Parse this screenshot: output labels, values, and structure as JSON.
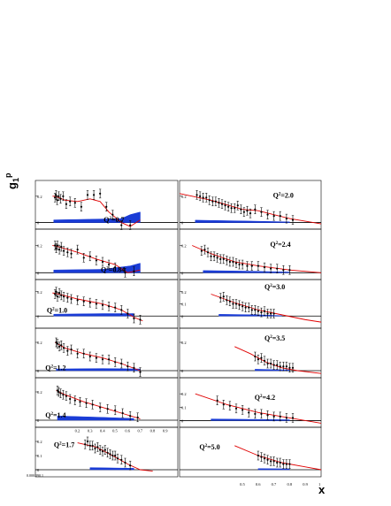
{
  "figure": {
    "ylabel": "g",
    "ylabel_sub": "1",
    "ylabel_sup": "p",
    "xlabel": "x"
  },
  "chart_data": [
    {
      "type": "scatter",
      "panel": "Q2=0.7",
      "label_q": "Q",
      "label_exp": "2",
      "label_val": "=0.7",
      "xlim": [
        8e-05,
        1
      ],
      "ylim": [
        -0.05,
        0.32
      ],
      "yticks": [
        "0.2",
        "0"
      ],
      "x": [
        0.02,
        0.028,
        0.038,
        0.05,
        0.065,
        0.085,
        0.11,
        0.14,
        0.18,
        0.23,
        0.28,
        0.33,
        0.38,
        0.43,
        0.48,
        0.55,
        0.62
      ],
      "y": [
        0.19,
        0.21,
        0.17,
        0.2,
        0.18,
        0.2,
        0.14,
        0.16,
        0.15,
        0.12,
        0.21,
        0.21,
        0.22,
        0.12,
        0.06,
        -0.02,
        -0.02
      ],
      "fit": [
        [
          0.0002,
          0.2
        ],
        [
          0.01,
          0.2
        ],
        [
          0.05,
          0.19
        ],
        [
          0.1,
          0.17
        ],
        [
          0.2,
          0.16
        ],
        [
          0.3,
          0.18
        ],
        [
          0.38,
          0.16
        ],
        [
          0.45,
          0.08
        ],
        [
          0.55,
          0.0
        ],
        [
          0.62,
          -0.03
        ],
        [
          0.7,
          0.02
        ]
      ],
      "band": [
        [
          0.01,
          0.02
        ],
        [
          0.3,
          0.025
        ],
        [
          0.55,
          0.03
        ],
        [
          0.62,
          0.06
        ],
        [
          0.7,
          0.08
        ]
      ]
    },
    {
      "type": "scatter",
      "panel": "Q2=2.0",
      "label_q": "Q",
      "label_exp": "2",
      "label_val": "=2.0",
      "xlim": [
        0.1,
        1
      ],
      "ylim": [
        -0.05,
        0.32
      ],
      "yticks": [
        "0.2",
        "0"
      ],
      "x": [
        0.21,
        0.23,
        0.25,
        0.27,
        0.29,
        0.31,
        0.33,
        0.35,
        0.37,
        0.39,
        0.41,
        0.43,
        0.45,
        0.47,
        0.49,
        0.51,
        0.53,
        0.55,
        0.58,
        0.62,
        0.66,
        0.7,
        0.74,
        0.78,
        0.82
      ],
      "y": [
        0.21,
        0.2,
        0.19,
        0.19,
        0.17,
        0.16,
        0.16,
        0.15,
        0.14,
        0.13,
        0.12,
        0.11,
        0.11,
        0.13,
        0.1,
        0.08,
        0.09,
        0.07,
        0.1,
        0.08,
        0.06,
        0.05,
        0.05,
        0.03,
        0.02
      ],
      "fit": [
        [
          0.1,
          0.22
        ],
        [
          0.3,
          0.17
        ],
        [
          0.5,
          0.1
        ],
        [
          0.6,
          0.09
        ],
        [
          0.7,
          0.06
        ],
        [
          0.8,
          0.03
        ],
        [
          1,
          -0.01
        ]
      ],
      "band": [
        [
          0.2,
          0.018
        ],
        [
          0.5,
          0.012
        ],
        [
          0.8,
          0.005
        ]
      ]
    },
    {
      "type": "scatter",
      "panel": "Q2=0.84",
      "label_q": "Q",
      "label_exp": "2",
      "label_val": "=0.84",
      "xlim": [
        8e-05,
        1
      ],
      "ylim": [
        -0.05,
        0.32
      ],
      "yticks": [
        "0.2",
        "0"
      ],
      "x": [
        0.02,
        0.03,
        0.04,
        0.055,
        0.07,
        0.09,
        0.12,
        0.15,
        0.2,
        0.25,
        0.3,
        0.35,
        0.4,
        0.45,
        0.5,
        0.58,
        0.65
      ],
      "y": [
        0.2,
        0.18,
        0.2,
        0.17,
        0.19,
        0.16,
        0.15,
        0.14,
        0.17,
        0.11,
        0.12,
        0.09,
        0.08,
        0.06,
        0.04,
        0.0,
        0.01
      ],
      "fit": [
        [
          0.0002,
          0.2
        ],
        [
          0.05,
          0.19
        ],
        [
          0.2,
          0.15
        ],
        [
          0.35,
          0.1
        ],
        [
          0.5,
          0.06
        ],
        [
          0.6,
          0.0
        ],
        [
          0.7,
          0.02
        ]
      ],
      "band": [
        [
          0.01,
          0.02
        ],
        [
          0.4,
          0.025
        ],
        [
          0.62,
          0.05
        ],
        [
          0.7,
          0.07
        ]
      ]
    },
    {
      "type": "scatter",
      "panel": "Q2=2.4",
      "label_q": "Q",
      "label_exp": "2",
      "label_val": "=2.4",
      "xlim": [
        0.1,
        1
      ],
      "ylim": [
        -0.05,
        0.32
      ],
      "yticks": [
        "0.2",
        "0"
      ],
      "x": [
        0.24,
        0.26,
        0.28,
        0.3,
        0.32,
        0.34,
        0.36,
        0.38,
        0.4,
        0.42,
        0.44,
        0.46,
        0.48,
        0.5,
        0.53,
        0.56,
        0.6,
        0.64,
        0.68,
        0.72,
        0.76,
        0.8
      ],
      "y": [
        0.16,
        0.17,
        0.15,
        0.12,
        0.12,
        0.11,
        0.1,
        0.1,
        0.09,
        0.08,
        0.08,
        0.07,
        0.06,
        0.06,
        0.05,
        0.05,
        0.05,
        0.04,
        0.03,
        0.03,
        0.02,
        0.02
      ],
      "fit": [
        [
          0.18,
          0.2
        ],
        [
          0.3,
          0.14
        ],
        [
          0.45,
          0.08
        ],
        [
          0.6,
          0.05
        ],
        [
          0.8,
          0.02
        ],
        [
          1,
          0.0
        ]
      ],
      "band": [
        [
          0.25,
          0.016
        ],
        [
          0.5,
          0.012
        ],
        [
          0.8,
          0.005
        ]
      ]
    },
    {
      "type": "scatter",
      "panel": "Q2=1.0",
      "label_q": "Q",
      "label_exp": "2",
      "label_val": "=1.0",
      "xlim": [
        8e-05,
        1
      ],
      "ylim": [
        -0.1,
        0.3
      ],
      "yticks": [
        "0.2",
        "0"
      ],
      "x": [
        0.02,
        0.03,
        0.04,
        0.055,
        0.07,
        0.09,
        0.12,
        0.15,
        0.2,
        0.25,
        0.3,
        0.35,
        0.4,
        0.45,
        0.5,
        0.55,
        0.6,
        0.65,
        0.7
      ],
      "y": [
        0.18,
        0.2,
        0.16,
        0.19,
        0.17,
        0.16,
        0.15,
        0.14,
        0.13,
        0.12,
        0.11,
        0.1,
        0.09,
        0.08,
        0.07,
        0.05,
        0.02,
        -0.02,
        -0.03
      ],
      "fit": [
        [
          0.0002,
          0.19
        ],
        [
          0.05,
          0.18
        ],
        [
          0.2,
          0.14
        ],
        [
          0.4,
          0.1
        ],
        [
          0.55,
          0.05
        ],
        [
          0.65,
          -0.01
        ],
        [
          0.72,
          -0.04
        ]
      ],
      "band": [
        [
          0.01,
          0.015
        ],
        [
          0.4,
          0.02
        ],
        [
          0.65,
          0.02
        ]
      ]
    },
    {
      "type": "scatter",
      "panel": "Q2=3.0",
      "label_q": "Q",
      "label_exp": "2",
      "label_val": "=3.0",
      "xlim": [
        0.1,
        1
      ],
      "ylim": [
        -0.1,
        0.3
      ],
      "yticks": [
        "0.2",
        "0.1",
        "0"
      ],
      "x": [
        0.36,
        0.38,
        0.4,
        0.42,
        0.44,
        0.46,
        0.48,
        0.5,
        0.52,
        0.54,
        0.56,
        0.58,
        0.6,
        0.62,
        0.64,
        0.66,
        0.68,
        0.7
      ],
      "y": [
        0.15,
        0.16,
        0.13,
        0.12,
        0.1,
        0.1,
        0.09,
        0.08,
        0.07,
        0.07,
        0.05,
        0.05,
        0.04,
        0.03,
        0.04,
        0.02,
        0.02,
        0.02
      ],
      "fit": [
        [
          0.3,
          0.18
        ],
        [
          0.45,
          0.11
        ],
        [
          0.6,
          0.05
        ],
        [
          0.75,
          0.01
        ],
        [
          0.9,
          -0.03
        ],
        [
          1,
          -0.05
        ]
      ],
      "band": [
        [
          0.35,
          0.014
        ],
        [
          0.6,
          0.01
        ],
        [
          0.75,
          0.003
        ]
      ]
    },
    {
      "type": "scatter",
      "panel": "Q2=1.2",
      "label_q": "Q",
      "label_exp": "2",
      "label_val": "=1.2",
      "xlim": [
        8e-05,
        1
      ],
      "ylim": [
        -0.05,
        0.3
      ],
      "yticks": [
        "0.2",
        "0"
      ],
      "x": [
        0.03,
        0.04,
        0.055,
        0.07,
        0.09,
        0.12,
        0.15,
        0.2,
        0.25,
        0.3,
        0.35,
        0.4,
        0.45,
        0.5,
        0.55,
        0.6,
        0.65,
        0.7
      ],
      "y": [
        0.2,
        0.19,
        0.17,
        0.18,
        0.16,
        0.14,
        0.15,
        0.12,
        0.12,
        0.1,
        0.09,
        0.08,
        0.08,
        0.06,
        0.05,
        0.03,
        0.02,
        -0.01
      ],
      "fit": [
        [
          0.02,
          0.2
        ],
        [
          0.1,
          0.16
        ],
        [
          0.25,
          0.12
        ],
        [
          0.4,
          0.09
        ],
        [
          0.55,
          0.05
        ],
        [
          0.7,
          0.0
        ]
      ],
      "band": [
        [
          0.03,
          0.012
        ],
        [
          0.4,
          0.015
        ],
        [
          0.7,
          0.012
        ]
      ]
    },
    {
      "type": "scatter",
      "panel": "Q2=3.5",
      "label_q": "Q",
      "label_exp": "2",
      "label_val": "=3.5",
      "xlim": [
        0.1,
        1
      ],
      "ylim": [
        -0.05,
        0.3
      ],
      "yticks": [
        "0.2",
        "0"
      ],
      "x": [
        0.58,
        0.6,
        0.62,
        0.64,
        0.66,
        0.68,
        0.7,
        0.72,
        0.74,
        0.76,
        0.78,
        0.8,
        0.82
      ],
      "y": [
        0.1,
        0.08,
        0.09,
        0.07,
        0.05,
        0.05,
        0.04,
        0.04,
        0.03,
        0.03,
        0.03,
        0.02,
        0.02
      ],
      "fit": [
        [
          0.45,
          0.17
        ],
        [
          0.55,
          0.12
        ],
        [
          0.65,
          0.06
        ],
        [
          0.75,
          0.02
        ],
        [
          0.85,
          0.0
        ],
        [
          1,
          -0.02
        ]
      ],
      "band": [
        [
          0.58,
          0.01
        ],
        [
          0.8,
          0.005
        ]
      ]
    },
    {
      "type": "scatter",
      "panel": "Q2=1.4",
      "label_q": "Q",
      "label_exp": "2",
      "label_val": "=1.4",
      "xlim": [
        8e-05,
        1
      ],
      "ylim": [
        -0.05,
        0.3
      ],
      "yticks": [
        "0.2",
        "0"
      ],
      "x": [
        0.04,
        0.05,
        0.065,
        0.085,
        0.11,
        0.14,
        0.18,
        0.22,
        0.27,
        0.32,
        0.38,
        0.44,
        0.5,
        0.56,
        0.62,
        0.68
      ],
      "y": [
        0.21,
        0.2,
        0.19,
        0.18,
        0.17,
        0.15,
        0.14,
        0.13,
        0.12,
        0.11,
        0.09,
        0.08,
        0.07,
        0.05,
        0.03,
        0.02
      ],
      "fit": [
        [
          0.03,
          0.21
        ],
        [
          0.1,
          0.18
        ],
        [
          0.25,
          0.13
        ],
        [
          0.4,
          0.09
        ],
        [
          0.55,
          0.05
        ],
        [
          0.7,
          0.01
        ]
      ],
      "band": [
        [
          0.04,
          0.03
        ],
        [
          0.4,
          0.02
        ],
        [
          0.65,
          0.012
        ]
      ]
    },
    {
      "type": "scatter",
      "panel": "Q2=4.2",
      "label_q": "Q",
      "label_exp": "2",
      "label_val": "=4.2",
      "xlim": [
        0.1,
        1
      ],
      "ylim": [
        -0.05,
        0.32
      ],
      "yticks": [
        "0.2",
        "0.1",
        "0"
      ],
      "x": [
        0.34,
        0.38,
        0.42,
        0.46,
        0.5,
        0.54,
        0.58,
        0.62,
        0.66,
        0.7,
        0.74,
        0.78,
        0.82
      ],
      "y": [
        0.15,
        0.12,
        0.11,
        0.09,
        0.08,
        0.06,
        0.05,
        0.05,
        0.04,
        0.03,
        0.03,
        0.02,
        0.02
      ],
      "fit": [
        [
          0.2,
          0.2
        ],
        [
          0.4,
          0.12
        ],
        [
          0.6,
          0.06
        ],
        [
          0.8,
          0.02
        ],
        [
          1,
          -0.02
        ]
      ],
      "band": [
        [
          0.3,
          0.012
        ],
        [
          0.8,
          0.006
        ]
      ]
    },
    {
      "type": "scatter",
      "panel": "Q2=1.7",
      "label_q": "Q",
      "label_exp": "2",
      "label_val": "=1.7",
      "xlim": [
        8e-05,
        1
      ],
      "ylim": [
        -0.05,
        0.3
      ],
      "yticks": [
        "0.2",
        "0.1",
        "0"
      ],
      "xtick_labels": [
        "0.2",
        "0.3",
        "0.4",
        "0.5",
        "0.6",
        "0.7",
        "0.8",
        "0.9"
      ],
      "x": [
        0.26,
        0.28,
        0.3,
        0.32,
        0.34,
        0.36,
        0.38,
        0.4,
        0.42,
        0.44,
        0.46,
        0.48,
        0.5,
        0.52,
        0.55,
        0.58,
        0.62
      ],
      "y": [
        0.18,
        0.2,
        0.17,
        0.17,
        0.15,
        0.16,
        0.14,
        0.13,
        0.14,
        0.12,
        0.11,
        0.1,
        0.1,
        0.08,
        0.07,
        0.05,
        0.03
      ],
      "fit": [
        [
          0.2,
          0.19
        ],
        [
          0.35,
          0.16
        ],
        [
          0.5,
          0.09
        ],
        [
          0.6,
          0.04
        ],
        [
          0.7,
          0.0
        ],
        [
          0.8,
          -0.01
        ]
      ],
      "band": [
        [
          0.3,
          0.015
        ],
        [
          0.65,
          0.01
        ]
      ]
    },
    {
      "type": "scatter",
      "panel": "Q2=5.0",
      "label_q": "Q",
      "label_exp": "2",
      "label_val": "=5.0",
      "xlim": [
        0.1,
        1
      ],
      "ylim": [
        -0.05,
        0.3
      ],
      "yticks": [],
      "xtick_labels": [
        "0.5",
        "0.6",
        "0.7",
        "0.8",
        "0.9",
        "1"
      ],
      "x": [
        0.6,
        0.62,
        0.64,
        0.66,
        0.68,
        0.7,
        0.72,
        0.74,
        0.76,
        0.78,
        0.8
      ],
      "y": [
        0.1,
        0.09,
        0.08,
        0.07,
        0.06,
        0.06,
        0.05,
        0.05,
        0.04,
        0.04,
        0.04
      ],
      "fit": [
        [
          0.45,
          0.17
        ],
        [
          0.6,
          0.1
        ],
        [
          0.75,
          0.05
        ],
        [
          0.9,
          0.02
        ],
        [
          1,
          0.0
        ]
      ],
      "band": [
        [
          0.6,
          0.008
        ],
        [
          0.8,
          0.006
        ]
      ]
    }
  ],
  "bottom_left_ticks": "0.000.090.1"
}
